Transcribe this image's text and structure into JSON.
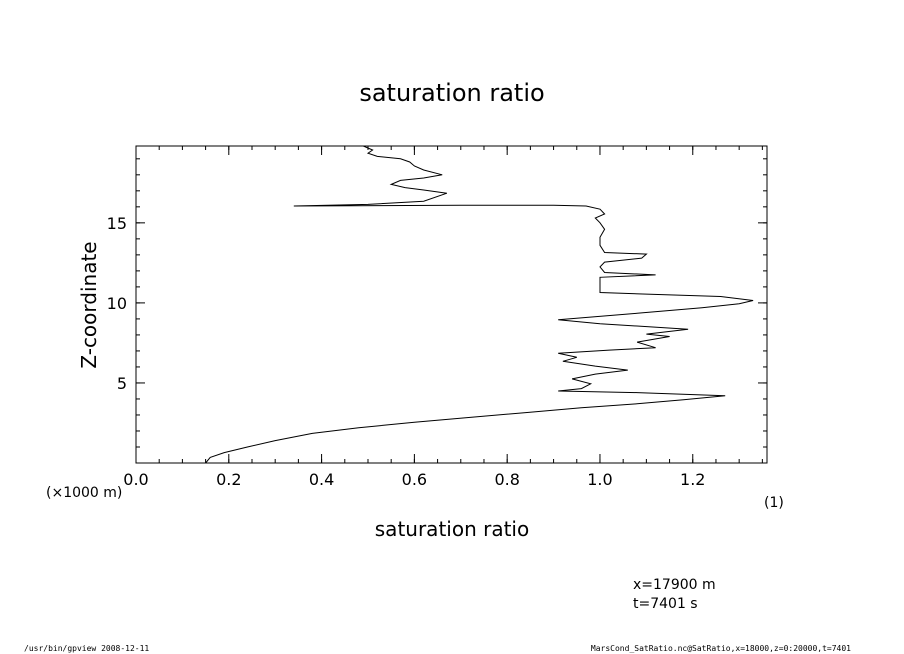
{
  "chart_data": {
    "type": "line",
    "title": "saturation ratio",
    "xlabel": "saturation ratio",
    "ylabel": "Z-coordinate",
    "xlim": [
      0.0,
      1.36
    ],
    "ylim": [
      0,
      19.8
    ],
    "x_ticks": [
      "0.0",
      "0.2",
      "0.4",
      "0.6",
      "0.8",
      "1.0",
      "1.2"
    ],
    "y_ticks": [
      "5",
      "10",
      "15"
    ],
    "x_unit": "(1)",
    "y_unit": "(×1000 m)",
    "grid": false,
    "series": [
      {
        "points": [
          [
            0.15,
            0.0
          ],
          [
            0.16,
            0.35
          ],
          [
            0.19,
            0.65
          ],
          [
            0.24,
            1.0
          ],
          [
            0.3,
            1.4
          ],
          [
            0.38,
            1.85
          ],
          [
            0.48,
            2.2
          ],
          [
            0.6,
            2.55
          ],
          [
            0.72,
            2.85
          ],
          [
            0.84,
            3.15
          ],
          [
            0.96,
            3.45
          ],
          [
            1.08,
            3.7
          ],
          [
            1.18,
            3.95
          ],
          [
            1.27,
            4.2
          ],
          [
            1.08,
            4.4
          ],
          [
            0.91,
            4.5
          ],
          [
            0.96,
            4.65
          ],
          [
            0.98,
            4.95
          ],
          [
            0.94,
            5.25
          ],
          [
            0.99,
            5.55
          ],
          [
            1.06,
            5.8
          ],
          [
            0.99,
            6.05
          ],
          [
            0.92,
            6.35
          ],
          [
            0.95,
            6.6
          ],
          [
            0.91,
            6.85
          ],
          [
            1.02,
            7.05
          ],
          [
            1.12,
            7.2
          ],
          [
            1.08,
            7.55
          ],
          [
            1.15,
            7.9
          ],
          [
            1.1,
            8.05
          ],
          [
            1.19,
            8.35
          ],
          [
            1.0,
            8.7
          ],
          [
            0.91,
            8.95
          ],
          [
            1.08,
            9.35
          ],
          [
            1.22,
            9.7
          ],
          [
            1.3,
            9.95
          ],
          [
            1.33,
            10.15
          ],
          [
            1.26,
            10.4
          ],
          [
            1.1,
            10.55
          ],
          [
            1.0,
            10.65
          ],
          [
            1.0,
            11.1
          ],
          [
            1.0,
            11.6
          ],
          [
            1.12,
            11.75
          ],
          [
            1.01,
            11.9
          ],
          [
            1.0,
            12.25
          ],
          [
            1.01,
            12.55
          ],
          [
            1.09,
            12.8
          ],
          [
            1.1,
            13.05
          ],
          [
            1.01,
            13.15
          ],
          [
            1.0,
            13.6
          ],
          [
            1.0,
            14.1
          ],
          [
            1.01,
            14.6
          ],
          [
            1.0,
            15.0
          ],
          [
            0.99,
            15.3
          ],
          [
            1.01,
            15.55
          ],
          [
            1.0,
            15.85
          ],
          [
            0.97,
            16.05
          ],
          [
            0.9,
            16.1
          ],
          [
            0.7,
            16.1
          ],
          [
            0.34,
            16.05
          ],
          [
            0.5,
            16.15
          ],
          [
            0.62,
            16.35
          ],
          [
            0.67,
            16.85
          ],
          [
            0.62,
            17.05
          ],
          [
            0.58,
            17.2
          ],
          [
            0.55,
            17.4
          ],
          [
            0.57,
            17.65
          ],
          [
            0.62,
            17.8
          ],
          [
            0.66,
            18.0
          ],
          [
            0.62,
            18.3
          ],
          [
            0.6,
            18.55
          ],
          [
            0.59,
            18.8
          ],
          [
            0.57,
            19.0
          ],
          [
            0.52,
            19.15
          ],
          [
            0.5,
            19.35
          ],
          [
            0.51,
            19.55
          ],
          [
            0.49,
            19.8
          ]
        ]
      }
    ]
  },
  "info": {
    "coord_x": "x=17900  m",
    "coord_t": "t=7401  s",
    "footer_left": "/usr/bin/gpview   2008-12-11",
    "footer_right": "MarsCond_SatRatio.nc@SatRatio,x=18000,z=0:20000,t=7401"
  }
}
